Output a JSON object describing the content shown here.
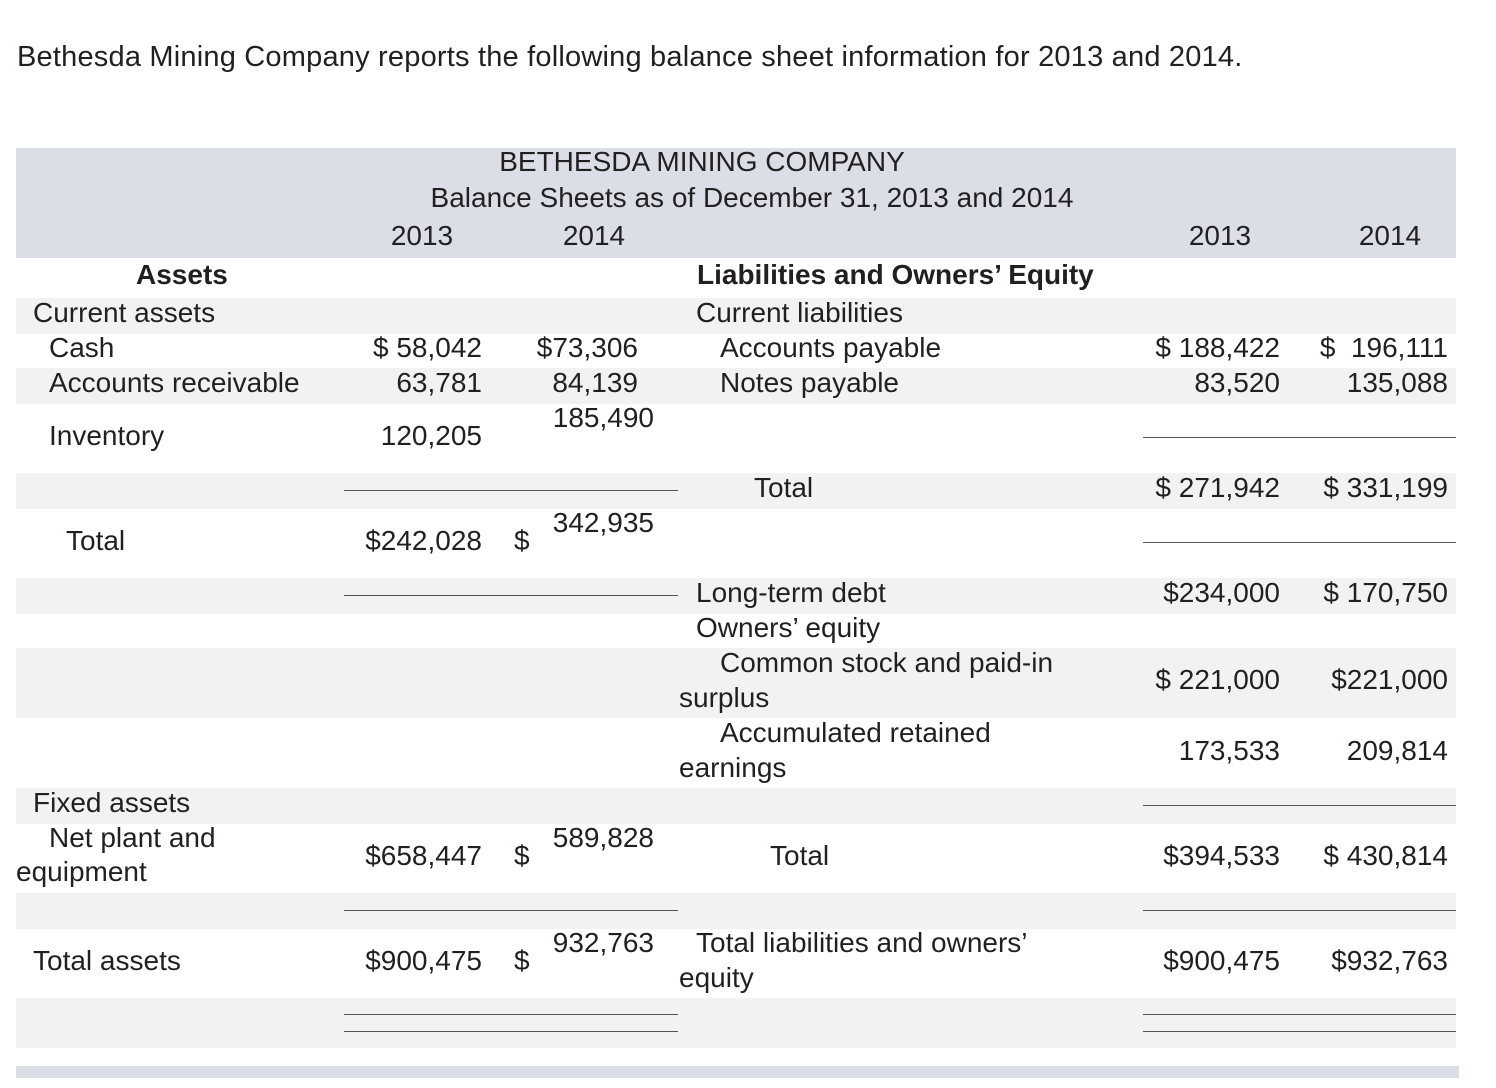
{
  "intro": "Bethesda Mining Company reports the following balance sheet information for 2013 and 2014.",
  "header": {
    "company": "BETHESDA MINING COMPANY",
    "subtitle": "Balance Sheets as of December 31, 2013 and 2014",
    "year_2013": "2013",
    "year_2014": "2014"
  },
  "assets": {
    "heading": "Assets",
    "current_heading": "Current assets",
    "rows": [
      {
        "label": "Cash",
        "v2013": "$ 58,042",
        "v2014": "$73,306"
      },
      {
        "label": "Accounts receivable",
        "v2013": "63,781",
        "v2014": "84,139"
      },
      {
        "label": "Inventory",
        "v2013": "120,205",
        "v2014": "185,490"
      }
    ],
    "current_total": {
      "label": "Total",
      "v2013": "$242,028",
      "v2014_sign": "$",
      "v2014": "342,935"
    },
    "fixed_heading": "Fixed assets",
    "net_plant": {
      "label": "Net plant and equipment",
      "v2013": "$658,447",
      "v2014_sign": "$",
      "v2014": "589,828"
    },
    "total_assets": {
      "label": "Total assets",
      "v2013": "$900,475",
      "v2014_sign": "$",
      "v2014": "932,763"
    }
  },
  "liabilities": {
    "heading": "Liabilities and Owners’ Equity",
    "current_heading": "Current liabilities",
    "rows": [
      {
        "label": "Accounts payable",
        "v2013": "$ 188,422",
        "v2014": "$  196,111"
      },
      {
        "label": "Notes payable",
        "v2013": "83,520",
        "v2014": "135,088"
      }
    ],
    "current_total": {
      "label": "Total",
      "v2013": "$ 271,942",
      "v2014": "$ 331,199"
    },
    "long_term_debt": {
      "label": "Long-term debt",
      "v2013": "$234,000",
      "v2014": "$ 170,750"
    },
    "equity_heading": "Owners’ equity",
    "common_stock": {
      "label_line1": "Common stock and paid-in",
      "label_line2": "surplus",
      "v2013": "$ 221,000",
      "v2014": "$221,000"
    },
    "retained": {
      "label_line1": "Accumulated retained",
      "label_line2": "earnings",
      "v2013": "173,533",
      "v2014": "209,814"
    },
    "equity_total": {
      "label": "Total",
      "v2013": "$394,533",
      "v2014": "$ 430,814"
    },
    "total_le": {
      "label_line1": "Total liabilities and owners’",
      "label_line2": "equity",
      "v2013": "$900,475",
      "v2014": "$932,763"
    }
  }
}
